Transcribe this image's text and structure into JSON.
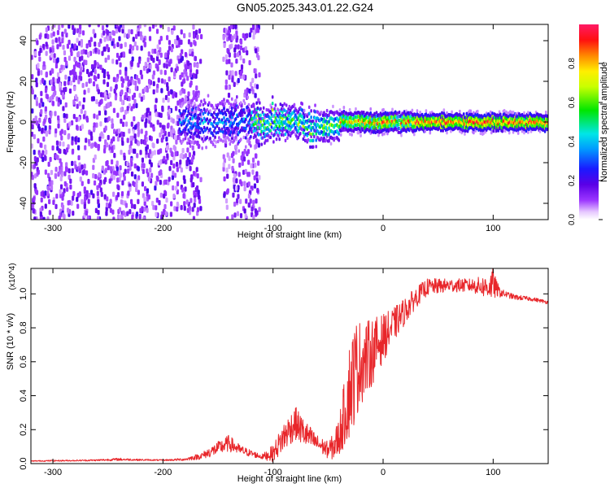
{
  "figure_title": "GN05.2025.343.01.22.G24",
  "colors": {
    "snr_line": "#e8262a",
    "background": "#ffffff",
    "axis": "#000000"
  },
  "chart_data": [
    {
      "type": "heatmap",
      "xlabel": "Height of straight line (km)",
      "ylabel": "Frequency (Hz)",
      "xlim": [
        -320,
        150
      ],
      "ylim": [
        -48,
        48
      ],
      "x_ticks": [
        -300,
        -200,
        -100,
        0,
        100
      ],
      "x_tick_labels": [
        "-300",
        "-200",
        "-100",
        "0",
        "100"
      ],
      "y_ticks": [
        -40,
        -20,
        0,
        20,
        40
      ],
      "y_tick_labels": [
        "-40",
        "-20",
        "0",
        "20",
        "40"
      ],
      "colorbar": {
        "label": "Normalized spectral amplitude",
        "range": [
          0,
          1
        ],
        "ticks": [
          0.0,
          0.2,
          0.4,
          0.6,
          0.8
        ],
        "tick_labels": [
          "0.0",
          "0.2",
          "0.4",
          "0.6",
          "0.8"
        ],
        "colormap": "rainbow (white-purple-blue-cyan-green-yellow-red-magenta)"
      },
      "features": [
        {
          "description": "broadband noise scatter",
          "x_range": [
            -320,
            -165
          ],
          "freq_range": [
            -48,
            48
          ]
        },
        {
          "description": "broadband noise scatter",
          "x_range": [
            -145,
            -112
          ],
          "freq_range": [
            -48,
            48
          ]
        },
        {
          "description": "signal band centered near 0 Hz",
          "x_range": [
            -185,
            150
          ],
          "freq_center": 0
        }
      ]
    },
    {
      "type": "line",
      "xlabel": "Height of straight line (km)",
      "ylabel": "SNR (10 * v/v)",
      "y_multiplier": "(x10^4)",
      "xlim": [
        -320,
        150
      ],
      "ylim": [
        0,
        1.15
      ],
      "x_ticks": [
        -300,
        -200,
        -100,
        0,
        100
      ],
      "x_tick_labels": [
        "-300",
        "-200",
        "-100",
        "0",
        "100"
      ],
      "y_ticks": [
        0.0,
        0.2,
        0.4,
        0.6,
        0.8,
        1.0
      ],
      "y_tick_labels": [
        "0.0",
        "0.2",
        "0.4",
        "0.6",
        "0.8",
        "1.0"
      ],
      "series": [
        {
          "x": [
            -320,
            -300,
            -280,
            -260,
            -240,
            -220,
            -200,
            -180,
            -165,
            -150,
            -140,
            -130,
            -120,
            -110,
            -100,
            -90,
            -80,
            -70,
            -60,
            -50,
            -45,
            -40,
            -35,
            -30,
            -25,
            -20,
            -15,
            -10,
            -5,
            0,
            10,
            20,
            30,
            40,
            60,
            80,
            95,
            100,
            103,
            106,
            110,
            120,
            135,
            150
          ],
          "y": [
            0.015,
            0.017,
            0.018,
            0.02,
            0.025,
            0.022,
            0.02,
            0.025,
            0.045,
            0.09,
            0.12,
            0.08,
            0.06,
            0.04,
            0.06,
            0.16,
            0.24,
            0.17,
            0.12,
            0.08,
            0.1,
            0.16,
            0.3,
            0.45,
            0.55,
            0.6,
            0.62,
            0.66,
            0.7,
            0.74,
            0.82,
            0.9,
            0.98,
            1.04,
            1.05,
            1.05,
            1.04,
            1.06,
            1.03,
            1.01,
            1.0,
            0.98,
            0.97,
            0.95
          ],
          "noise": [
            0.003,
            0.004,
            0.004,
            0.005,
            0.008,
            0.005,
            0.004,
            0.008,
            0.02,
            0.04,
            0.05,
            0.03,
            0.02,
            0.015,
            0.05,
            0.09,
            0.1,
            0.08,
            0.05,
            0.05,
            0.08,
            0.12,
            0.2,
            0.3,
            0.3,
            0.25,
            0.22,
            0.2,
            0.17,
            0.14,
            0.1,
            0.08,
            0.06,
            0.05,
            0.04,
            0.04,
            0.07,
            0.1,
            0.05,
            0.03,
            0.02,
            0.015,
            0.012,
            0.01
          ]
        }
      ]
    }
  ]
}
